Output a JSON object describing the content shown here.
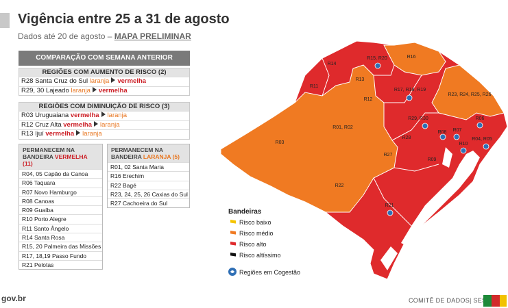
{
  "header": {
    "title": "Vigência entre 25 a 31 de agosto",
    "subtitle": "Dados até 20 de agosto –",
    "link": "MAPA PRELIMINAR"
  },
  "comparison": {
    "title": "COMPARAÇÃO COM SEMANA ANTERIOR",
    "increase": {
      "heading": "REGIÕES  COM AUMENTO DE RISCO (2)",
      "rows": [
        {
          "region": "R28 Santa Cruz do Sul",
          "from": "laranja",
          "to": "vermelha"
        },
        {
          "region": "R29, 30 Lajeado",
          "from": "laranja",
          "to": "vermelha"
        }
      ]
    },
    "decrease": {
      "heading": "REGIÕES  COM DIMINUIÇÃO DE RISCO (3)",
      "rows": [
        {
          "region": "R03 Uruguaiana",
          "from": "vermelha",
          "to": "laranja"
        },
        {
          "region": "R12 Cruz Alta",
          "from": "vermelha",
          "to": "laranja"
        },
        {
          "region": "R13 Ijuí",
          "from": "vermelha",
          "to": "laranja"
        }
      ]
    }
  },
  "remain_red": {
    "heading": "PERMANECEM  NA",
    "heading_prefix": "BANDEIRA",
    "heading_flag": "VERMELHA (11)",
    "items": [
      "R04, 05 Capão da Canoa",
      "R06 Taquara",
      "R07 Novo Hamburgo",
      "R08 Canoas",
      "R09 Guaíba",
      "R10 Porto Alegre",
      "R11 Santo Ângelo",
      "R14 Santa Rosa",
      "R15, 20 Palmeira das Missões",
      "R17, 18,19 Passo Fundo",
      "R21 Pelotas"
    ]
  },
  "remain_orange": {
    "heading": "PERMANECEM  NA",
    "heading_prefix": "BANDEIRA",
    "heading_flag": "LARANJA  (5)",
    "items": [
      "R01, 02 Santa Maria",
      "R16 Erechim",
      "R22 Bagé",
      "R23, 24, 25, 26 Caxias do Sul",
      "R27 Cachoeira do Sul"
    ]
  },
  "map": {
    "labels": [
      "R15, R20",
      "R16",
      "R14",
      "R11",
      "R13",
      "R12",
      "R17, R18, R19",
      "R23, R24, R25, R26",
      "R01, R02",
      "R03",
      "R29, R30",
      "R28",
      "R06",
      "R08",
      "R07",
      "R10",
      "R04, R05",
      "R27",
      "R09",
      "R22",
      "R21"
    ]
  },
  "legend": {
    "title": "Bandeiras",
    "items": [
      "Risco baixo",
      "Risco médio",
      "Risco alto",
      "Risco altíssimo"
    ],
    "cogestao": "Regiões em Cogestão"
  },
  "footer": {
    "site": "gov.br",
    "credit": "COMITÊ DE DADOS| SES"
  }
}
